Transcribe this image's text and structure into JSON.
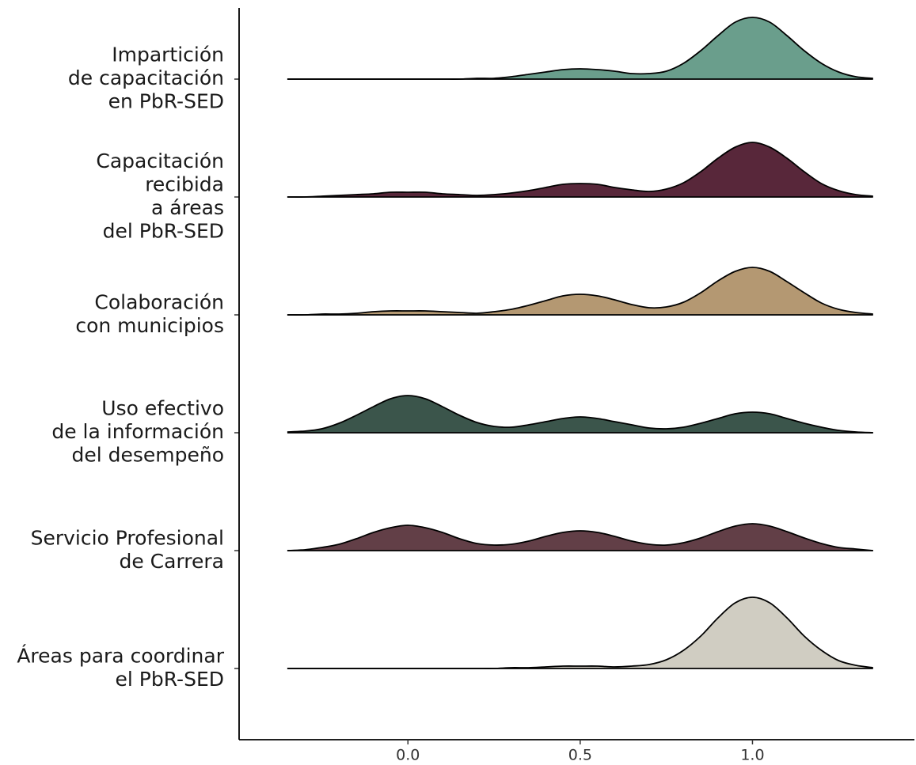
{
  "chart_data": {
    "type": "ridgeline",
    "categories": [
      [
        "Impartición",
        "de capacitación",
        "en PbR-SED"
      ],
      [
        "Capacitación",
        "recibida",
        "a áreas",
        "del PbR-SED"
      ],
      [
        "Colaboración",
        "con municipios"
      ],
      [
        "Uso efectivo",
        "de la información",
        "del desempeño"
      ],
      [
        "Servicio Profesional",
        "de Carrera"
      ],
      [
        "Áreas para coordinar",
        "el PbR-SED"
      ]
    ],
    "x": [
      -0.35,
      -0.3,
      -0.25,
      -0.2,
      -0.15,
      -0.1,
      -0.05,
      0,
      0.05,
      0.1,
      0.15,
      0.2,
      0.25,
      0.3,
      0.35,
      0.4,
      0.45,
      0.5,
      0.55,
      0.6,
      0.65,
      0.7,
      0.75,
      0.8,
      0.85,
      0.9,
      0.95,
      1,
      1.05,
      1.1,
      1.15,
      1.2,
      1.25,
      1.3,
      1.35
    ],
    "series": [
      {
        "color": "#6a9e8c",
        "values": [
          0,
          0,
          0,
          0,
          0,
          0,
          0,
          0,
          0,
          0,
          0,
          0.01,
          0.01,
          0.03,
          0.06,
          0.09,
          0.12,
          0.13,
          0.12,
          0.1,
          0.07,
          0.07,
          0.1,
          0.2,
          0.36,
          0.55,
          0.72,
          0.78,
          0.72,
          0.55,
          0.36,
          0.2,
          0.09,
          0.03,
          0.01
        ]
      },
      {
        "color": "#58273a",
        "values": [
          0,
          0,
          0.01,
          0.02,
          0.03,
          0.04,
          0.06,
          0.06,
          0.06,
          0.04,
          0.03,
          0.02,
          0.03,
          0.05,
          0.08,
          0.12,
          0.16,
          0.17,
          0.16,
          0.12,
          0.09,
          0.07,
          0.1,
          0.18,
          0.32,
          0.49,
          0.63,
          0.69,
          0.63,
          0.49,
          0.32,
          0.17,
          0.08,
          0.03,
          0.01
        ]
      },
      {
        "color": "#b49872",
        "values": [
          0,
          0,
          0.01,
          0.01,
          0.02,
          0.04,
          0.05,
          0.05,
          0.05,
          0.04,
          0.03,
          0.02,
          0.04,
          0.07,
          0.12,
          0.18,
          0.24,
          0.26,
          0.24,
          0.19,
          0.13,
          0.09,
          0.1,
          0.16,
          0.28,
          0.43,
          0.55,
          0.6,
          0.55,
          0.42,
          0.28,
          0.15,
          0.07,
          0.03,
          0.01
        ]
      },
      {
        "color": "#3b554b",
        "values": [
          0.01,
          0.02,
          0.05,
          0.12,
          0.22,
          0.33,
          0.43,
          0.47,
          0.43,
          0.33,
          0.22,
          0.13,
          0.08,
          0.07,
          0.1,
          0.14,
          0.18,
          0.2,
          0.18,
          0.14,
          0.1,
          0.06,
          0.05,
          0.07,
          0.12,
          0.18,
          0.24,
          0.26,
          0.24,
          0.18,
          0.12,
          0.07,
          0.03,
          0.01,
          0
        ]
      },
      {
        "color": "#623f47",
        "values": [
          0,
          0.01,
          0.04,
          0.08,
          0.15,
          0.23,
          0.29,
          0.32,
          0.29,
          0.23,
          0.15,
          0.09,
          0.07,
          0.08,
          0.12,
          0.18,
          0.23,
          0.25,
          0.23,
          0.18,
          0.12,
          0.08,
          0.07,
          0.1,
          0.16,
          0.24,
          0.31,
          0.34,
          0.31,
          0.24,
          0.16,
          0.09,
          0.04,
          0.02,
          0
        ]
      },
      {
        "color": "#d0cdc2",
        "values": [
          0,
          0,
          0,
          0,
          0,
          0,
          0,
          0,
          0,
          0,
          0,
          0,
          0,
          0.01,
          0.01,
          0.02,
          0.03,
          0.03,
          0.03,
          0.02,
          0.03,
          0.05,
          0.11,
          0.23,
          0.41,
          0.64,
          0.83,
          0.9,
          0.83,
          0.64,
          0.41,
          0.23,
          0.1,
          0.04,
          0.01
        ]
      }
    ],
    "xlim": [
      -0.49,
      1.47
    ],
    "xticks": [
      {
        "value": 0,
        "label": "0.0"
      },
      {
        "value": 0.5,
        "label": "0.5"
      },
      {
        "value": 1,
        "label": "1.0"
      }
    ]
  }
}
